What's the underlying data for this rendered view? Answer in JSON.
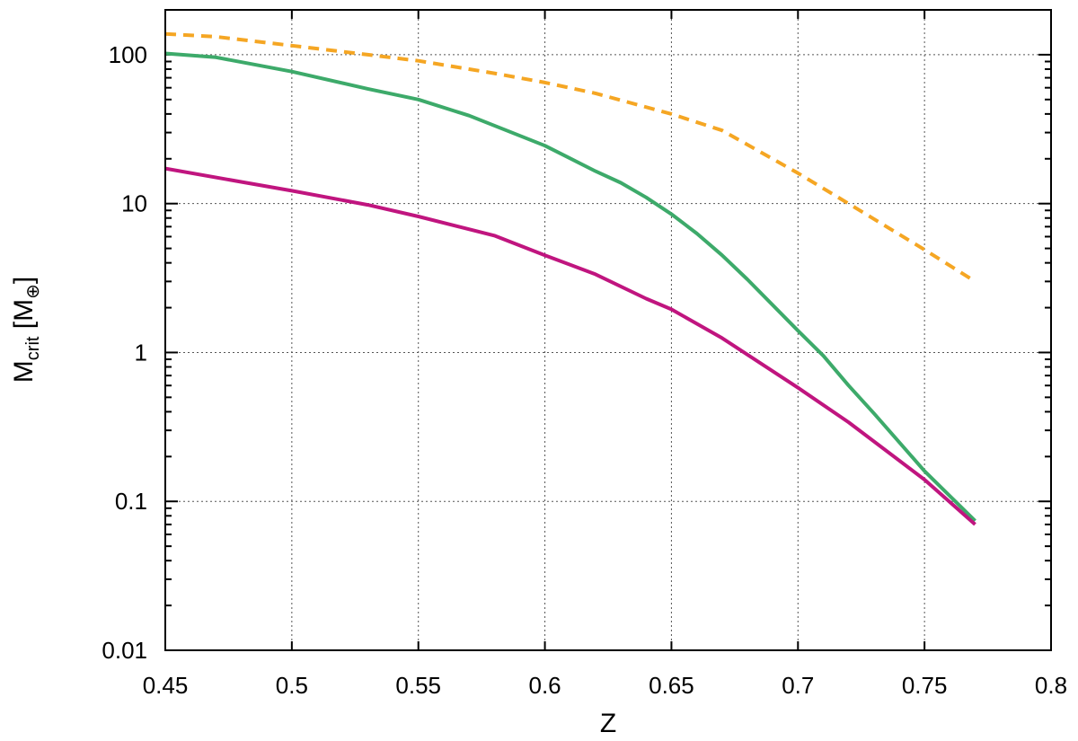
{
  "chart_data": {
    "type": "line",
    "xlabel": "Z",
    "ylabel": {
      "main": "M",
      "subscript": "crit",
      "unit_open": " [M",
      "unit_subscript": "⊕",
      "unit_close": "]"
    },
    "xlim": [
      0.45,
      0.8
    ],
    "ylim": [
      0.01,
      200
    ],
    "yscale": "log",
    "grid": true,
    "x_ticks": [
      "0.45",
      "0.5",
      "0.55",
      "0.6",
      "0.65",
      "0.7",
      "0.75",
      "0.8"
    ],
    "y_ticks": [
      "0.01",
      "0.1",
      "1",
      "10",
      "100"
    ],
    "series": [
      {
        "color": "#f5a623",
        "dash": "dashed",
        "x": [
          0.45,
          0.47,
          0.5,
          0.53,
          0.55,
          0.58,
          0.6,
          0.62,
          0.65,
          0.67,
          0.7,
          0.72,
          0.75,
          0.77
        ],
        "y": [
          138,
          132,
          115,
          100,
          91,
          75,
          65,
          55,
          40,
          31,
          16,
          10,
          4.9,
          3.0
        ]
      },
      {
        "color": "#3daa6a",
        "dash": "solid",
        "x": [
          0.45,
          0.47,
          0.5,
          0.53,
          0.55,
          0.57,
          0.6,
          0.62,
          0.63,
          0.64,
          0.65,
          0.66,
          0.67,
          0.68,
          0.7,
          0.71,
          0.72,
          0.73,
          0.75,
          0.77
        ],
        "y": [
          102,
          96,
          77,
          59,
          50,
          39,
          24.5,
          16.5,
          13.8,
          11,
          8.5,
          6.3,
          4.5,
          3.1,
          1.4,
          0.95,
          0.6,
          0.39,
          0.16,
          0.074
        ]
      },
      {
        "color": "#c0157f",
        "dash": "solid",
        "x": [
          0.45,
          0.48,
          0.5,
          0.53,
          0.55,
          0.58,
          0.6,
          0.62,
          0.64,
          0.65,
          0.67,
          0.7,
          0.72,
          0.75,
          0.77
        ],
        "y": [
          17.2,
          14,
          12.2,
          9.8,
          8.2,
          6.1,
          4.5,
          3.35,
          2.3,
          1.95,
          1.25,
          0.58,
          0.34,
          0.14,
          0.07
        ]
      }
    ]
  }
}
